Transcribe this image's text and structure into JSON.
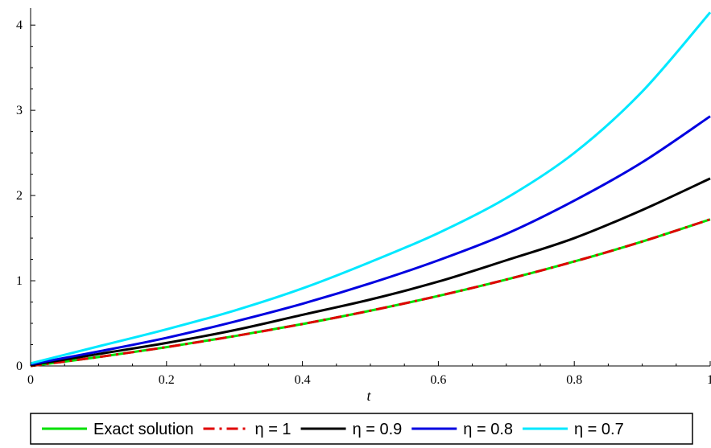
{
  "chart_data": {
    "type": "line",
    "xlabel": "t",
    "ylabel": "",
    "xlim": [
      0,
      1
    ],
    "ylim": [
      0,
      4.2
    ],
    "x_ticks": [
      {
        "value": 0,
        "label": "0"
      },
      {
        "value": 0.2,
        "label": "0.2"
      },
      {
        "value": 0.4,
        "label": "0.4"
      },
      {
        "value": 0.6,
        "label": "0.6"
      },
      {
        "value": 0.8,
        "label": "0.8"
      },
      {
        "value": 1,
        "label": "1"
      }
    ],
    "y_ticks": [
      {
        "value": 0,
        "label": "0"
      },
      {
        "value": 1,
        "label": "1"
      },
      {
        "value": 2,
        "label": "2"
      },
      {
        "value": 3,
        "label": "3"
      },
      {
        "value": 4,
        "label": "4"
      }
    ],
    "x": [
      0,
      0.1,
      0.2,
      0.3,
      0.4,
      0.5,
      0.6,
      0.7,
      0.8,
      0.9,
      1.0
    ],
    "series": [
      {
        "name": "Exact solution",
        "color": "#00e000",
        "dash": "solid",
        "values": [
          0,
          0.105,
          0.221,
          0.35,
          0.492,
          0.649,
          0.822,
          1.014,
          1.226,
          1.46,
          1.72
        ]
      },
      {
        "name": "η = 1",
        "color": "#e00000",
        "dash": "dashdot",
        "values": [
          0,
          0.105,
          0.221,
          0.35,
          0.492,
          0.649,
          0.822,
          1.014,
          1.226,
          1.46,
          1.72
        ]
      },
      {
        "name": "η = 0.9",
        "color": "#000000",
        "dash": "solid",
        "values": [
          0.01,
          0.14,
          0.27,
          0.42,
          0.6,
          0.78,
          0.99,
          1.24,
          1.5,
          1.83,
          2.2
        ]
      },
      {
        "name": "η = 0.8",
        "color": "#0000e0",
        "dash": "solid",
        "values": [
          0.02,
          0.17,
          0.33,
          0.52,
          0.73,
          0.97,
          1.24,
          1.55,
          1.94,
          2.39,
          2.93
        ]
      },
      {
        "name": "η = 0.7",
        "color": "#00e8ff",
        "dash": "solid",
        "values": [
          0.03,
          0.23,
          0.43,
          0.65,
          0.91,
          1.22,
          1.56,
          1.97,
          2.5,
          3.22,
          4.15
        ]
      }
    ],
    "legend": {
      "position": "bottom"
    },
    "grid": false
  }
}
